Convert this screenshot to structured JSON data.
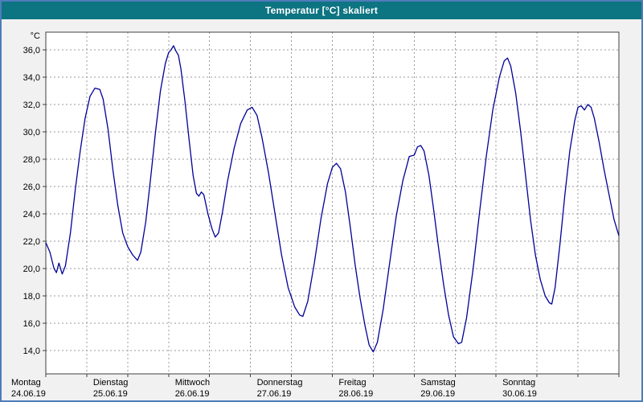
{
  "window": {
    "title": "Temperatur [°C] skaliert"
  },
  "colors": {
    "title_bg": "#0d7482",
    "title_fg": "#ffffff",
    "frame": "#4f7cba",
    "bg": "#f1f1f1",
    "plot_bg": "#ffffff",
    "grid": "#9a9a9a",
    "plot_border": "#404040",
    "label": "#000000"
  },
  "chart_data": {
    "type": "line",
    "title": "Temperatur [°C] skaliert",
    "y_unit": "°C",
    "ylabel": "Temperatur [°C]",
    "ylim": [
      12.3,
      37.3
    ],
    "x_range_days": [
      0,
      7
    ],
    "grid": "dashed",
    "legend_position": "none",
    "y_ticks": [
      {
        "value": 36,
        "label": "36,0"
      },
      {
        "value": 34,
        "label": "34,0"
      },
      {
        "value": 32,
        "label": "32,0"
      },
      {
        "value": 30,
        "label": "30,0"
      },
      {
        "value": 28,
        "label": "28,0"
      },
      {
        "value": 26,
        "label": "26,0"
      },
      {
        "value": 24,
        "label": "24,0"
      },
      {
        "value": 22,
        "label": "22,0"
      },
      {
        "value": 20,
        "label": "20,0"
      },
      {
        "value": 18,
        "label": "18,0"
      },
      {
        "value": 16,
        "label": "16,0"
      },
      {
        "value": 14,
        "label": "14,0"
      }
    ],
    "x_days": [
      {
        "name": "Montag",
        "date": "24.06.19"
      },
      {
        "name": "Dienstag",
        "date": "25.06.19"
      },
      {
        "name": "Mittwoch",
        "date": "26.06.19"
      },
      {
        "name": "Donnerstag",
        "date": "27.06.19"
      },
      {
        "name": "Freitag",
        "date": "28.06.19"
      },
      {
        "name": "Samstag",
        "date": "29.06.19"
      },
      {
        "name": "Sonntag",
        "date": "30.06.19"
      }
    ],
    "series": [
      {
        "name": "Temperatur",
        "color": "#000099",
        "points": [
          [
            0.0,
            21.9
          ],
          [
            0.05,
            21.2
          ],
          [
            0.1,
            20.0
          ],
          [
            0.13,
            19.7
          ],
          [
            0.16,
            20.4
          ],
          [
            0.2,
            19.6
          ],
          [
            0.24,
            20.2
          ],
          [
            0.3,
            22.6
          ],
          [
            0.36,
            25.8
          ],
          [
            0.42,
            28.6
          ],
          [
            0.48,
            31.0
          ],
          [
            0.54,
            32.6
          ],
          [
            0.6,
            33.2
          ],
          [
            0.66,
            33.1
          ],
          [
            0.7,
            32.4
          ],
          [
            0.76,
            30.2
          ],
          [
            0.82,
            27.2
          ],
          [
            0.88,
            24.6
          ],
          [
            0.94,
            22.6
          ],
          [
            1.0,
            21.6
          ],
          [
            1.06,
            21.0
          ],
          [
            1.12,
            20.6
          ],
          [
            1.16,
            21.2
          ],
          [
            1.22,
            23.4
          ],
          [
            1.28,
            26.6
          ],
          [
            1.34,
            30.0
          ],
          [
            1.4,
            33.0
          ],
          [
            1.46,
            35.0
          ],
          [
            1.5,
            35.8
          ],
          [
            1.53,
            36.0
          ],
          [
            1.56,
            36.3
          ],
          [
            1.59,
            35.9
          ],
          [
            1.62,
            35.6
          ],
          [
            1.65,
            34.6
          ],
          [
            1.7,
            32.2
          ],
          [
            1.75,
            29.4
          ],
          [
            1.8,
            26.8
          ],
          [
            1.84,
            25.5
          ],
          [
            1.87,
            25.3
          ],
          [
            1.9,
            25.6
          ],
          [
            1.93,
            25.4
          ],
          [
            1.98,
            24.0
          ],
          [
            2.03,
            22.9
          ],
          [
            2.07,
            22.3
          ],
          [
            2.11,
            22.6
          ],
          [
            2.16,
            24.2
          ],
          [
            2.22,
            26.4
          ],
          [
            2.3,
            28.8
          ],
          [
            2.38,
            30.6
          ],
          [
            2.46,
            31.6
          ],
          [
            2.52,
            31.8
          ],
          [
            2.58,
            31.2
          ],
          [
            2.64,
            29.6
          ],
          [
            2.72,
            27.0
          ],
          [
            2.8,
            24.0
          ],
          [
            2.88,
            21.0
          ],
          [
            2.96,
            18.6
          ],
          [
            3.04,
            17.2
          ],
          [
            3.1,
            16.6
          ],
          [
            3.14,
            16.5
          ],
          [
            3.2,
            17.6
          ],
          [
            3.28,
            20.4
          ],
          [
            3.36,
            23.6
          ],
          [
            3.44,
            26.2
          ],
          [
            3.5,
            27.4
          ],
          [
            3.55,
            27.7
          ],
          [
            3.6,
            27.3
          ],
          [
            3.66,
            25.6
          ],
          [
            3.72,
            23.0
          ],
          [
            3.78,
            20.2
          ],
          [
            3.84,
            17.8
          ],
          [
            3.9,
            15.8
          ],
          [
            3.95,
            14.4
          ],
          [
            4.0,
            13.9
          ],
          [
            4.05,
            14.6
          ],
          [
            4.12,
            17.0
          ],
          [
            4.2,
            20.4
          ],
          [
            4.28,
            23.8
          ],
          [
            4.36,
            26.4
          ],
          [
            4.44,
            28.2
          ],
          [
            4.5,
            28.3
          ],
          [
            4.54,
            28.9
          ],
          [
            4.58,
            29.0
          ],
          [
            4.62,
            28.6
          ],
          [
            4.68,
            26.8
          ],
          [
            4.74,
            24.2
          ],
          [
            4.8,
            21.4
          ],
          [
            4.86,
            18.8
          ],
          [
            4.92,
            16.6
          ],
          [
            4.98,
            15.0
          ],
          [
            5.04,
            14.5
          ],
          [
            5.08,
            14.6
          ],
          [
            5.14,
            16.4
          ],
          [
            5.22,
            20.0
          ],
          [
            5.3,
            24.2
          ],
          [
            5.38,
            28.2
          ],
          [
            5.46,
            31.6
          ],
          [
            5.54,
            34.0
          ],
          [
            5.6,
            35.2
          ],
          [
            5.64,
            35.4
          ],
          [
            5.68,
            34.8
          ],
          [
            5.74,
            32.8
          ],
          [
            5.8,
            30.0
          ],
          [
            5.86,
            26.8
          ],
          [
            5.92,
            23.6
          ],
          [
            5.98,
            21.0
          ],
          [
            6.04,
            19.2
          ],
          [
            6.1,
            18.0
          ],
          [
            6.15,
            17.5
          ],
          [
            6.18,
            17.4
          ],
          [
            6.22,
            18.6
          ],
          [
            6.28,
            21.8
          ],
          [
            6.34,
            25.4
          ],
          [
            6.4,
            28.6
          ],
          [
            6.46,
            30.8
          ],
          [
            6.5,
            31.8
          ],
          [
            6.54,
            31.9
          ],
          [
            6.58,
            31.6
          ],
          [
            6.62,
            32.0
          ],
          [
            6.66,
            31.8
          ],
          [
            6.7,
            31.0
          ],
          [
            6.76,
            29.2
          ],
          [
            6.82,
            27.2
          ],
          [
            6.88,
            25.4
          ],
          [
            6.94,
            23.6
          ],
          [
            7.0,
            22.4
          ]
        ]
      }
    ]
  }
}
